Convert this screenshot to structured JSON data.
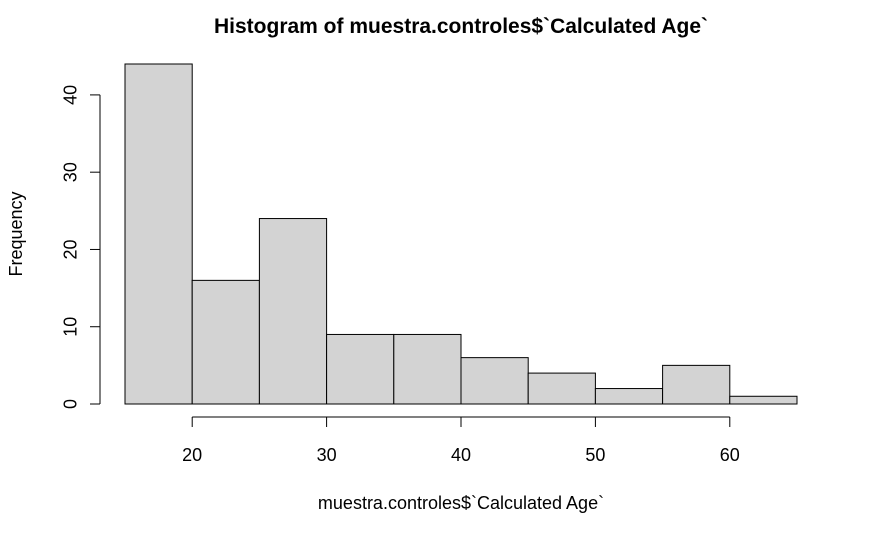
{
  "chart_data": {
    "type": "histogram",
    "title": "Histogram of muestra.controles$`Calculated Age`",
    "xlabel": "muestra.controles$`Calculated Age`",
    "ylabel": "Frequency",
    "bins": [
      {
        "from": 15,
        "to": 20,
        "count": 44
      },
      {
        "from": 20,
        "to": 25,
        "count": 16
      },
      {
        "from": 25,
        "to": 30,
        "count": 24
      },
      {
        "from": 30,
        "to": 35,
        "count": 9
      },
      {
        "from": 35,
        "to": 40,
        "count": 9
      },
      {
        "from": 40,
        "to": 45,
        "count": 6
      },
      {
        "from": 45,
        "to": 50,
        "count": 4
      },
      {
        "from": 50,
        "to": 55,
        "count": 2
      },
      {
        "from": 55,
        "to": 60,
        "count": 5
      },
      {
        "from": 60,
        "to": 65,
        "count": 1
      }
    ],
    "xlim": [
      15,
      65
    ],
    "ylim": [
      0,
      44
    ],
    "x_ticks": [
      20,
      30,
      40,
      50,
      60
    ],
    "y_ticks": [
      0,
      10,
      20,
      30,
      40
    ],
    "bar_fill": "#d3d3d3",
    "bar_stroke": "#000000",
    "grid": false,
    "legend": "none"
  }
}
